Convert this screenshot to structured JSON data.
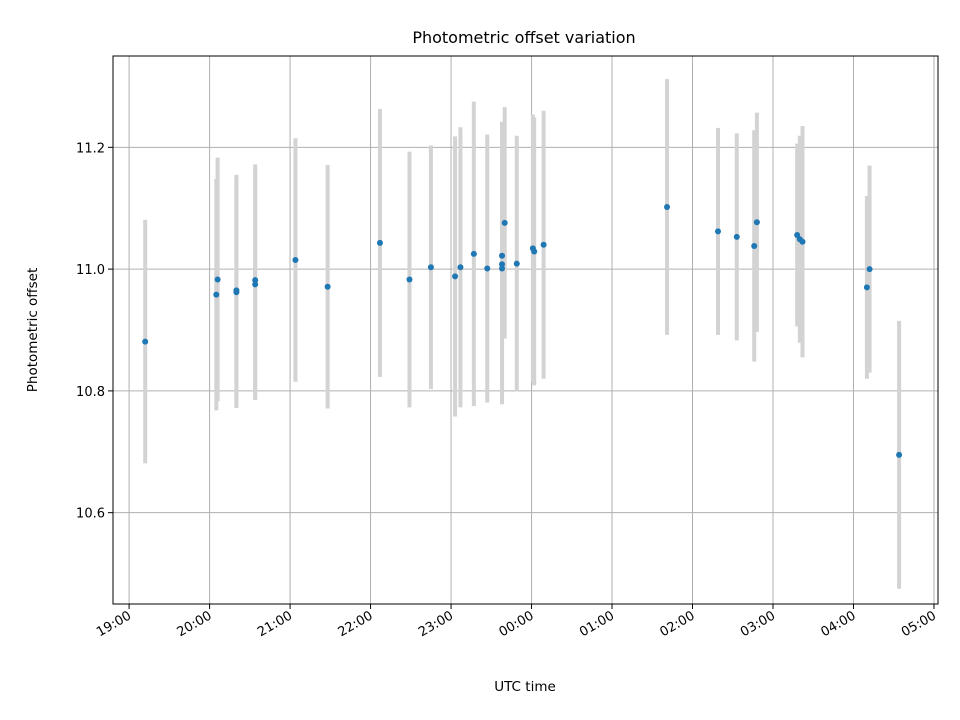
{
  "chart_data": {
    "type": "scatter",
    "title": "Photometric offset variation",
    "xlabel": "UTC time",
    "ylabel": "Photometric offset",
    "x_ticks": [
      "19:00",
      "20:00",
      "21:00",
      "22:00",
      "23:00",
      "00:00",
      "01:00",
      "02:00",
      "03:00",
      "04:00",
      "05:00"
    ],
    "y_ticks": [
      "10.6",
      "10.8",
      "11.0",
      "11.2"
    ],
    "xlim": [
      "18:48",
      "05:03"
    ],
    "ylim": [
      10.45,
      11.35
    ],
    "grid": true,
    "marker_color": "#1f77b4",
    "errorbar_color": "#d3d3d3",
    "points": [
      {
        "time": "19:12",
        "y": 10.881,
        "err": 0.2
      },
      {
        "time": "20:05",
        "y": 10.958,
        "err": 0.19
      },
      {
        "time": "20:06",
        "y": 10.983,
        "err": 0.2
      },
      {
        "time": "20:20",
        "y": 10.962,
        "err": 0.19
      },
      {
        "time": "20:20",
        "y": 10.965,
        "err": 0.19
      },
      {
        "time": "20:34",
        "y": 10.975,
        "err": 0.19
      },
      {
        "time": "20:34",
        "y": 10.982,
        "err": 0.19
      },
      {
        "time": "21:04",
        "y": 11.015,
        "err": 0.2
      },
      {
        "time": "21:28",
        "y": 10.971,
        "err": 0.2
      },
      {
        "time": "22:07",
        "y": 11.043,
        "err": 0.22
      },
      {
        "time": "22:29",
        "y": 10.983,
        "err": 0.21
      },
      {
        "time": "22:45",
        "y": 11.003,
        "err": 0.2
      },
      {
        "time": "23:03",
        "y": 10.988,
        "err": 0.23
      },
      {
        "time": "23:07",
        "y": 11.003,
        "err": 0.23
      },
      {
        "time": "23:17",
        "y": 11.025,
        "err": 0.25
      },
      {
        "time": "23:27",
        "y": 11.001,
        "err": 0.22
      },
      {
        "time": "23:38",
        "y": 11.022,
        "err": 0.22
      },
      {
        "time": "23:38",
        "y": 11.008,
        "err": 0.23
      },
      {
        "time": "23:38",
        "y": 11.001,
        "err": 0.22
      },
      {
        "time": "23:40",
        "y": 11.076,
        "err": 0.19
      },
      {
        "time": "23:49",
        "y": 11.009,
        "err": 0.21
      },
      {
        "time": "00:01",
        "y": 11.034,
        "err": 0.22
      },
      {
        "time": "00:02",
        "y": 11.029,
        "err": 0.22
      },
      {
        "time": "00:09",
        "y": 11.04,
        "err": 0.22
      },
      {
        "time": "01:41",
        "y": 11.102,
        "err": 0.21
      },
      {
        "time": "02:19",
        "y": 11.062,
        "err": 0.17
      },
      {
        "time": "02:33",
        "y": 11.053,
        "err": 0.17
      },
      {
        "time": "02:46",
        "y": 11.038,
        "err": 0.19
      },
      {
        "time": "02:48",
        "y": 11.077,
        "err": 0.18
      },
      {
        "time": "03:18",
        "y": 11.056,
        "err": 0.15
      },
      {
        "time": "03:20",
        "y": 11.049,
        "err": 0.17
      },
      {
        "time": "03:22",
        "y": 11.045,
        "err": 0.19
      },
      {
        "time": "04:10",
        "y": 10.97,
        "err": 0.15
      },
      {
        "time": "04:12",
        "y": 11.0,
        "err": 0.17
      },
      {
        "time": "04:34",
        "y": 10.695,
        "err": 0.22
      }
    ]
  }
}
